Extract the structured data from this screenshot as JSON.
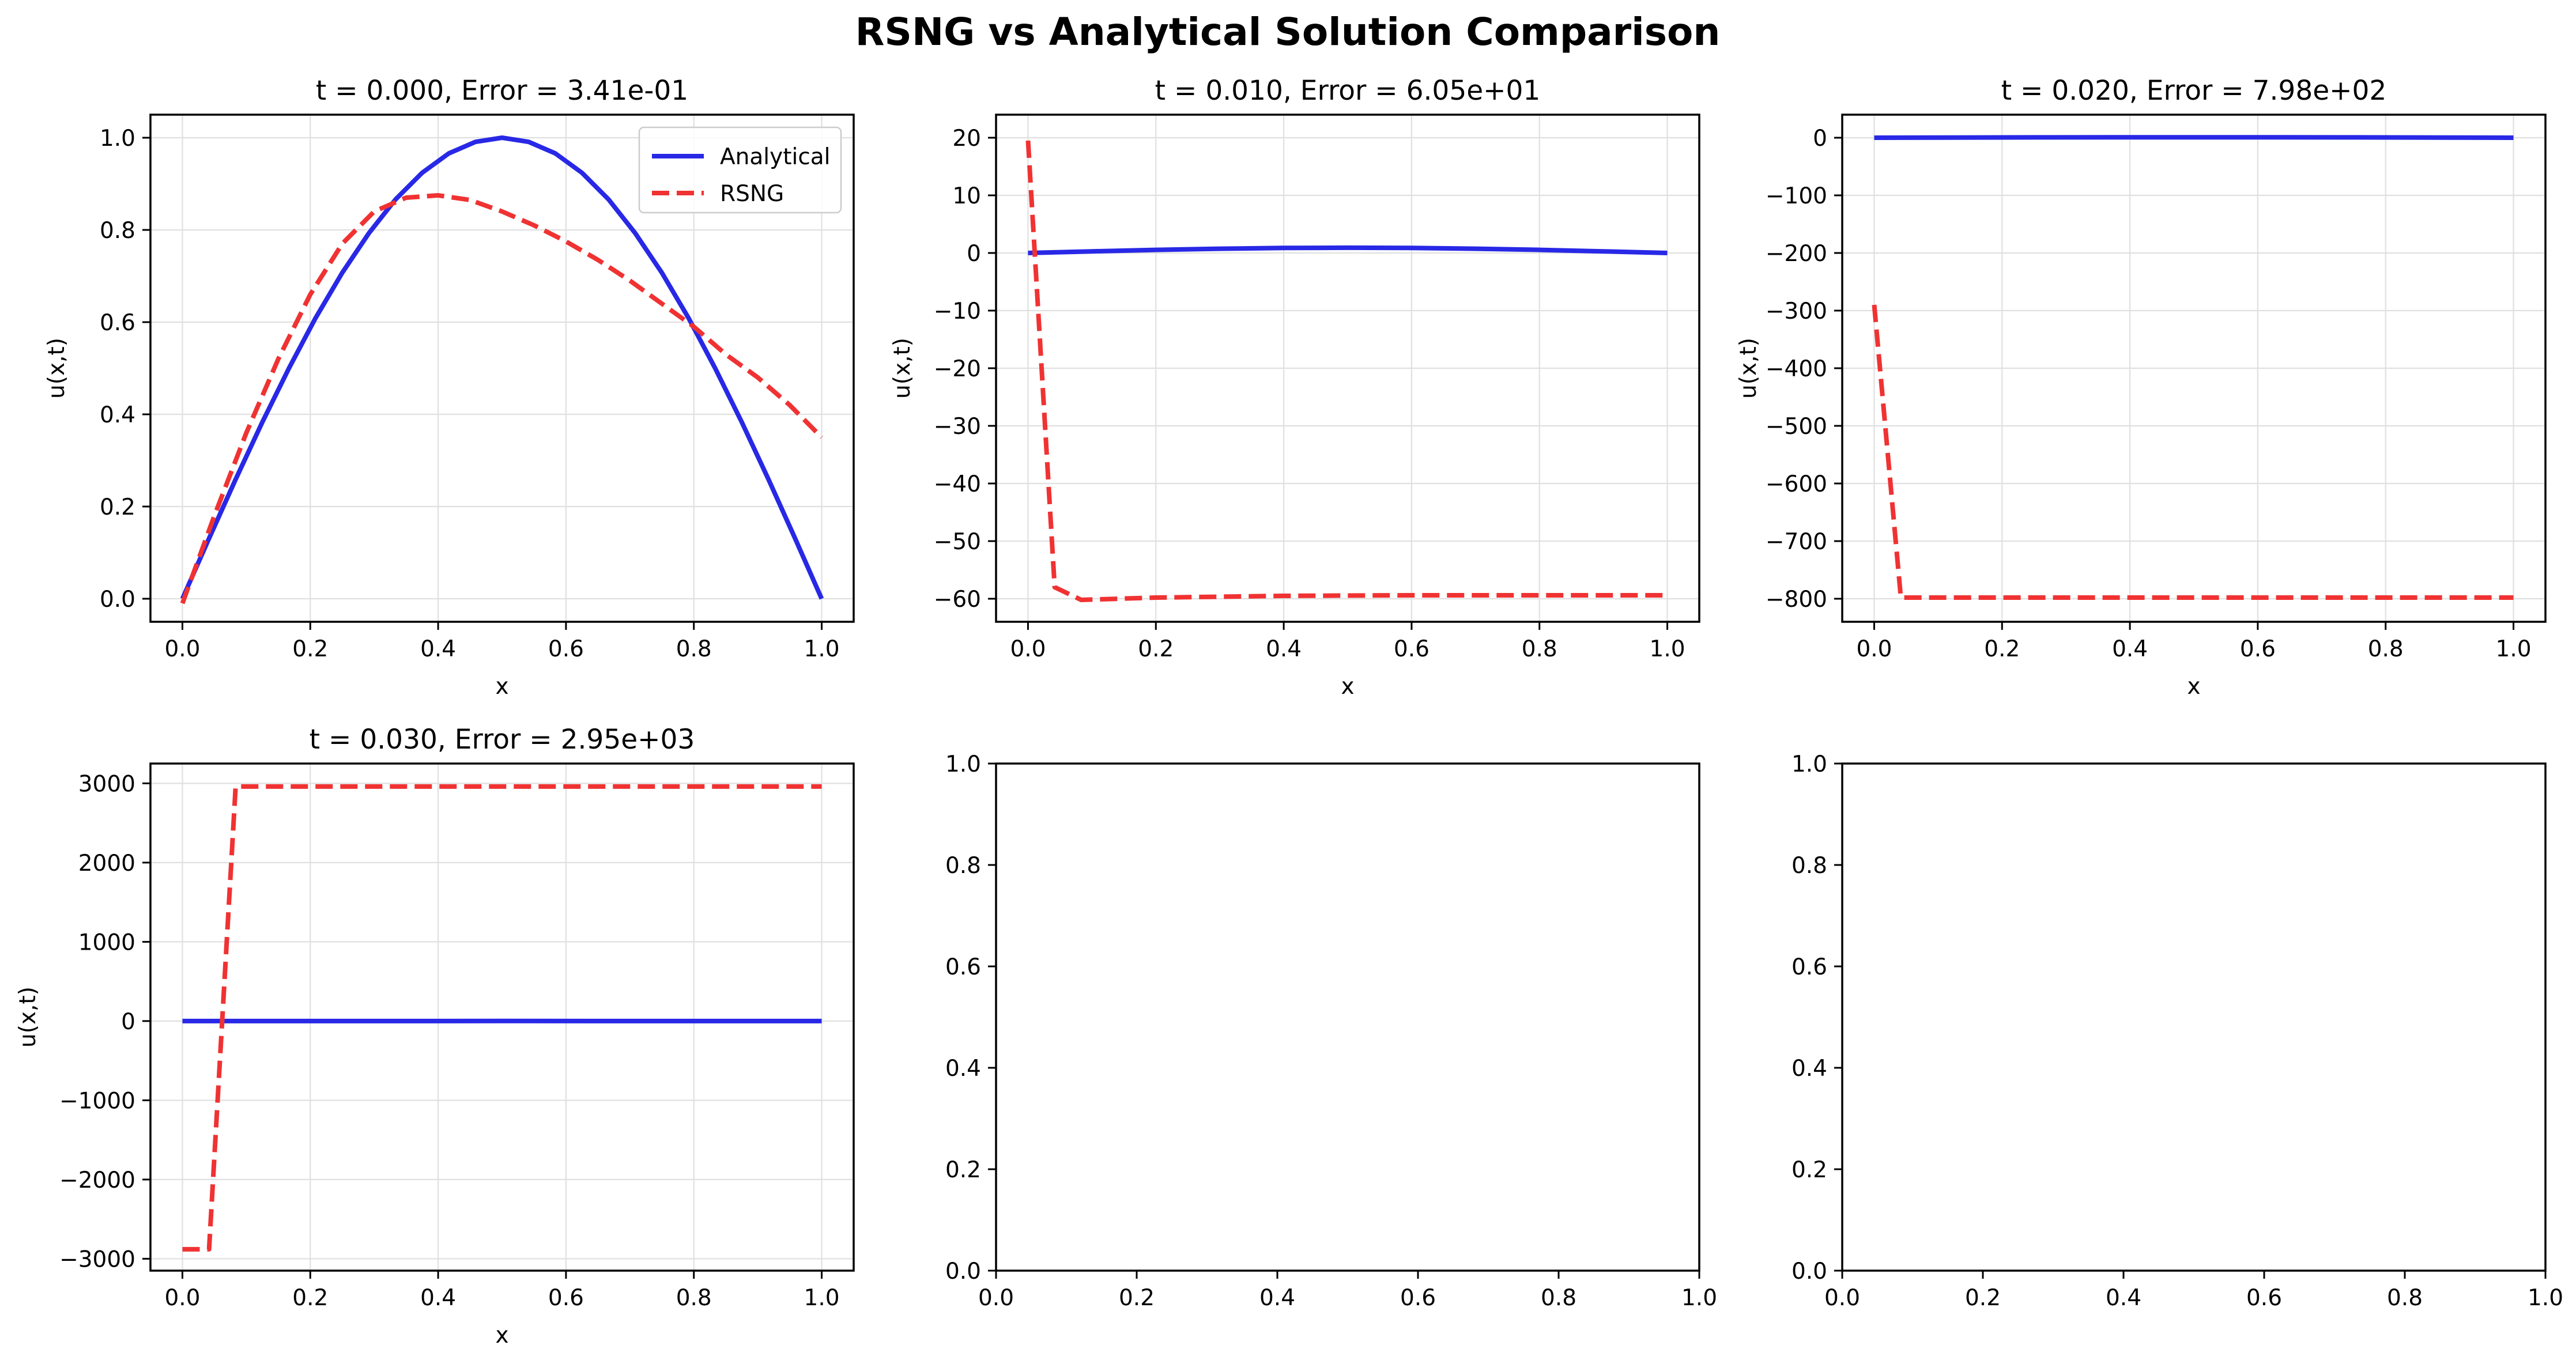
{
  "figure": {
    "title": "RSNG vs Analytical Solution Comparison"
  },
  "colors": {
    "analytical": "#2828e6",
    "rsng": "#f03232",
    "grid": "#e0e0e0",
    "axes": "#000000"
  },
  "chart_data": [
    {
      "type": "line",
      "title": "t = 0.000, Error = 3.41e-01",
      "xlabel": "x",
      "ylabel": "u(x,t)",
      "xlim": [
        -0.05,
        1.05
      ],
      "ylim": [
        -0.05,
        1.05
      ],
      "xticks": [
        0.0,
        0.2,
        0.4,
        0.6,
        0.8,
        1.0
      ],
      "xtick_labels": [
        "0.0",
        "0.2",
        "0.4",
        "0.6",
        "0.8",
        "1.0"
      ],
      "yticks": [
        0.0,
        0.2,
        0.4,
        0.6,
        0.8,
        1.0
      ],
      "ytick_labels": [
        "0.0",
        "0.2",
        "0.4",
        "0.6",
        "0.8",
        "1.0"
      ],
      "grid": true,
      "legend": {
        "position": "upper right",
        "entries": [
          "Analytical",
          "RSNG"
        ]
      },
      "series": [
        {
          "name": "Analytical",
          "style": "solid",
          "x": [
            0.0,
            0.0417,
            0.0833,
            0.125,
            0.1667,
            0.2083,
            0.25,
            0.2917,
            0.3333,
            0.375,
            0.4167,
            0.4583,
            0.5,
            0.5417,
            0.5833,
            0.625,
            0.6667,
            0.7083,
            0.75,
            0.7917,
            0.8333,
            0.875,
            0.9167,
            0.9583,
            1.0
          ],
          "y": [
            0.0,
            0.131,
            0.259,
            0.383,
            0.5,
            0.609,
            0.707,
            0.793,
            0.866,
            0.924,
            0.966,
            0.991,
            1.0,
            0.991,
            0.966,
            0.924,
            0.866,
            0.793,
            0.707,
            0.609,
            0.5,
            0.383,
            0.259,
            0.131,
            0.0
          ]
        },
        {
          "name": "RSNG",
          "style": "dashed",
          "x": [
            0.0,
            0.05,
            0.1,
            0.15,
            0.2,
            0.25,
            0.3,
            0.35,
            0.4,
            0.45,
            0.5,
            0.55,
            0.6,
            0.65,
            0.7,
            0.75,
            0.8,
            0.85,
            0.9,
            0.95,
            1.0
          ],
          "y": [
            -0.01,
            0.18,
            0.36,
            0.52,
            0.66,
            0.77,
            0.84,
            0.87,
            0.875,
            0.865,
            0.84,
            0.81,
            0.775,
            0.735,
            0.69,
            0.64,
            0.59,
            0.53,
            0.48,
            0.42,
            0.35
          ]
        }
      ]
    },
    {
      "type": "line",
      "title": "t = 0.010, Error = 6.05e+01",
      "xlabel": "x",
      "ylabel": "u(x,t)",
      "xlim": [
        -0.05,
        1.05
      ],
      "ylim": [
        -64,
        24
      ],
      "xticks": [
        0.0,
        0.2,
        0.4,
        0.6,
        0.8,
        1.0
      ],
      "xtick_labels": [
        "0.0",
        "0.2",
        "0.4",
        "0.6",
        "0.8",
        "1.0"
      ],
      "yticks": [
        20,
        10,
        0,
        -10,
        -20,
        -30,
        -40,
        -50,
        -60
      ],
      "ytick_labels": [
        "20",
        "10",
        "0",
        "−10",
        "−20",
        "−30",
        "−40",
        "−50",
        "−60"
      ],
      "grid": true,
      "series": [
        {
          "name": "Analytical",
          "style": "solid",
          "x": [
            0.0,
            0.1,
            0.2,
            0.3,
            0.4,
            0.5,
            0.6,
            0.7,
            0.8,
            0.9,
            1.0
          ],
          "y": [
            0.0,
            0.28,
            0.54,
            0.74,
            0.87,
            0.91,
            0.87,
            0.74,
            0.54,
            0.28,
            0.0
          ]
        },
        {
          "name": "RSNG",
          "style": "dashed",
          "x": [
            0.0,
            0.0417,
            0.0833,
            0.2,
            0.4,
            0.6,
            0.8,
            1.0
          ],
          "y": [
            19.5,
            -58.0,
            -60.2,
            -59.8,
            -59.5,
            -59.4,
            -59.4,
            -59.4
          ]
        }
      ]
    },
    {
      "type": "line",
      "title": "t = 0.020, Error = 7.98e+02",
      "xlabel": "x",
      "ylabel": "u(x,t)",
      "xlim": [
        -0.05,
        1.05
      ],
      "ylim": [
        -840,
        40
      ],
      "xticks": [
        0.0,
        0.2,
        0.4,
        0.6,
        0.8,
        1.0
      ],
      "xtick_labels": [
        "0.0",
        "0.2",
        "0.4",
        "0.6",
        "0.8",
        "1.0"
      ],
      "yticks": [
        0,
        -100,
        -200,
        -300,
        -400,
        -500,
        -600,
        -700,
        -800
      ],
      "ytick_labels": [
        "0",
        "−100",
        "−200",
        "−300",
        "−400",
        "−500",
        "−600",
        "−700",
        "−800"
      ],
      "grid": true,
      "series": [
        {
          "name": "Analytical",
          "style": "solid",
          "x": [
            0.0,
            0.25,
            0.5,
            0.75,
            1.0
          ],
          "y": [
            0.0,
            0.6,
            0.83,
            0.6,
            0.0
          ]
        },
        {
          "name": "RSNG",
          "style": "dashed",
          "x": [
            0.0,
            0.0417,
            0.2,
            0.4,
            0.6,
            0.8,
            1.0
          ],
          "y": [
            -290,
            -798,
            -798,
            -798,
            -798,
            -798,
            -798
          ]
        }
      ]
    },
    {
      "type": "line",
      "title": "t = 0.030, Error = 2.95e+03",
      "xlabel": "x",
      "ylabel": "u(x,t)",
      "xlim": [
        -0.05,
        1.05
      ],
      "ylim": [
        -3150,
        3250
      ],
      "xticks": [
        0.0,
        0.2,
        0.4,
        0.6,
        0.8,
        1.0
      ],
      "xtick_labels": [
        "0.0",
        "0.2",
        "0.4",
        "0.6",
        "0.8",
        "1.0"
      ],
      "yticks": [
        3000,
        2000,
        1000,
        0,
        -1000,
        -2000,
        -3000
      ],
      "ytick_labels": [
        "3000",
        "2000",
        "1000",
        "0",
        "−1000",
        "−2000",
        "−3000"
      ],
      "grid": true,
      "series": [
        {
          "name": "Analytical",
          "style": "solid",
          "x": [
            0.0,
            0.5,
            1.0
          ],
          "y": [
            0.0,
            0.75,
            0.0
          ]
        },
        {
          "name": "RSNG",
          "style": "dashed",
          "x": [
            0.0,
            0.0417,
            0.0833,
            0.2,
            0.4,
            0.6,
            0.8,
            1.0
          ],
          "y": [
            -2880,
            -2880,
            2960,
            2960,
            2960,
            2960,
            2960,
            2960
          ]
        }
      ]
    },
    {
      "type": "line",
      "title": "",
      "xlabel": "",
      "ylabel": "",
      "xlim": [
        0.0,
        1.0
      ],
      "ylim": [
        0.0,
        1.0
      ],
      "xticks": [
        0.0,
        0.2,
        0.4,
        0.6,
        0.8,
        1.0
      ],
      "xtick_labels": [
        "0.0",
        "0.2",
        "0.4",
        "0.6",
        "0.8",
        "1.0"
      ],
      "yticks": [
        0.0,
        0.2,
        0.4,
        0.6,
        0.8,
        1.0
      ],
      "ytick_labels": [
        "0.0",
        "0.2",
        "0.4",
        "0.6",
        "0.8",
        "1.0"
      ],
      "grid": false,
      "series": []
    },
    {
      "type": "line",
      "title": "",
      "xlabel": "",
      "ylabel": "",
      "xlim": [
        0.0,
        1.0
      ],
      "ylim": [
        0.0,
        1.0
      ],
      "xticks": [
        0.0,
        0.2,
        0.4,
        0.6,
        0.8,
        1.0
      ],
      "xtick_labels": [
        "0.0",
        "0.2",
        "0.4",
        "0.6",
        "0.8",
        "1.0"
      ],
      "yticks": [
        0.0,
        0.2,
        0.4,
        0.6,
        0.8,
        1.0
      ],
      "ytick_labels": [
        "0.0",
        "0.2",
        "0.4",
        "0.6",
        "0.8",
        "1.0"
      ],
      "grid": false,
      "series": []
    }
  ]
}
